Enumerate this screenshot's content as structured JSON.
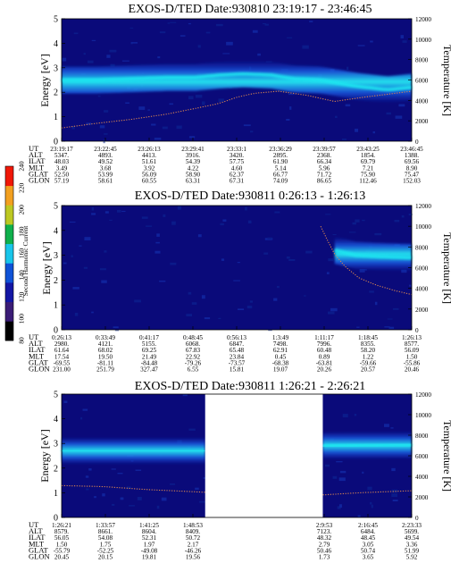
{
  "colors": {
    "background": "#0a0a7a",
    "band_core": "#1de7f0",
    "temperature_trace": "#d88450",
    "data_gap": "#ffffff"
  },
  "colorbar": {
    "label": "Second Harmonic Current",
    "ticks": [
      "80",
      "100",
      "120",
      "140",
      "160",
      "180",
      "200",
      "220",
      "240"
    ],
    "colors": [
      "#000000",
      "#3a1c76",
      "#1316a4",
      "#0f52d7",
      "#18c5ea",
      "#0fb04c",
      "#bdc822",
      "#f2a020",
      "#f01808"
    ]
  },
  "chart_data": [
    {
      "type": "heatmap",
      "title": "EXOS-D/TED  Date:930810  23:19:17 - 23:46:45",
      "ylabel": "Energy [eV]",
      "ylabel_right": "Temperature [K]",
      "ylim": [
        0,
        5
      ],
      "ylim_right": [
        0,
        12000
      ],
      "yticks": [
        0,
        1,
        2,
        3,
        4,
        5
      ],
      "yticks_right": [
        0,
        2000,
        4000,
        6000,
        8000,
        10000,
        12000
      ],
      "row_labels": [
        "UT",
        "ALT",
        "ILAT",
        "MLT",
        "GLAT",
        "GLON"
      ],
      "columns": [
        [
          "23:19:17",
          "5347.",
          "48.03",
          "3.49",
          "52.50",
          "57.19"
        ],
        [
          "23:22:45",
          "4893.",
          "49.52",
          "3.68",
          "53.99",
          "58.61"
        ],
        [
          "23:26:13",
          "4413.",
          "51.61",
          "3.92",
          "56.09",
          "60.55"
        ],
        [
          "23:29:41",
          "3916.",
          "54.39",
          "4.22",
          "58.90",
          "63.31"
        ],
        [
          "23:33:1",
          "3420.",
          "57.75",
          "4.60",
          "62.37",
          "67.31"
        ],
        [
          "23:36:29",
          "2895.",
          "61.90",
          "5.14",
          "66.77",
          "74.09"
        ],
        [
          "23:39:57",
          "2368.",
          "66.34",
          "5.96",
          "71.72",
          "86.65"
        ],
        [
          "23:43:25",
          "1854.",
          "69.79",
          "7.21",
          "75.90",
          "112.46"
        ],
        [
          "23:46:45",
          "1388.",
          "69.56",
          "8.90",
          "75.47",
          "152.03"
        ]
      ],
      "band_energy_ev": [
        [
          0.0,
          2.5
        ],
        [
          0.1,
          2.5
        ],
        [
          0.2,
          2.55
        ],
        [
          0.3,
          2.6
        ],
        [
          0.38,
          2.6
        ],
        [
          0.45,
          2.7
        ],
        [
          0.52,
          2.75
        ],
        [
          0.6,
          2.7
        ],
        [
          0.66,
          2.55
        ],
        [
          0.74,
          2.5
        ],
        [
          0.84,
          2.25
        ],
        [
          0.93,
          2.1
        ],
        [
          1.0,
          2.2
        ]
      ],
      "temperature_k": [
        [
          0.0,
          1300
        ],
        [
          0.1,
          1750
        ],
        [
          0.2,
          2150
        ],
        [
          0.3,
          2650
        ],
        [
          0.38,
          3200
        ],
        [
          0.45,
          3700
        ],
        [
          0.5,
          4300
        ],
        [
          0.55,
          4700
        ],
        [
          0.62,
          4900
        ],
        [
          0.7,
          4500
        ],
        [
          0.78,
          3900
        ],
        [
          0.86,
          4300
        ],
        [
          0.93,
          4600
        ],
        [
          1.0,
          4900
        ]
      ]
    },
    {
      "type": "heatmap",
      "title": "EXOS-D/TED   Date:930811  0:26:13 - 1:26:13",
      "ylabel": "Energy [eV]",
      "ylabel_right": "Temperature [K]",
      "ylim": [
        0,
        5
      ],
      "ylim_right": [
        0,
        12000
      ],
      "yticks": [
        0,
        1,
        2,
        3,
        4,
        5
      ],
      "yticks_right": [
        0,
        2000,
        4000,
        6000,
        8000,
        10000,
        12000
      ],
      "row_labels": [
        "UT",
        "ALT",
        "ILAT",
        "MLT",
        "GLAT",
        "GLON"
      ],
      "columns": [
        [
          "0:26:13",
          "2980.",
          "61.64",
          "17.54",
          "-69.55",
          "231.00"
        ],
        [
          "0:33:49",
          "4121.",
          "68.02",
          "19.50",
          "-81.11",
          "251.79"
        ],
        [
          "0:41:17",
          "5155.",
          "69.25",
          "21.49",
          "-84.48",
          "327.47"
        ],
        [
          "0:48:45",
          "6068.",
          "67.83",
          "22.92",
          "-79.26",
          "6.55"
        ],
        [
          "0:56:13",
          "6847.",
          "65.48",
          "23.84",
          "-73.57",
          "15.81"
        ],
        [
          "1:3:49",
          "7498.",
          "62.91",
          "0.45",
          "-68.38",
          "19.07"
        ],
        [
          "1:11:17",
          "7996.",
          "60.48",
          "0.89",
          "-63.81",
          "20.26"
        ],
        [
          "1:18:45",
          "8355.",
          "58.20",
          "1.22",
          "-59.66",
          "20.57"
        ],
        [
          "1:26:13",
          "8577.",
          "56.09",
          "1.50",
          "-55.86",
          "20.46"
        ]
      ],
      "band_energy_ev": [
        [
          0.78,
          3.2
        ],
        [
          0.84,
          3.0
        ],
        [
          0.9,
          2.95
        ],
        [
          1.0,
          2.9
        ]
      ],
      "temperature_k": [
        [
          0.74,
          10000
        ],
        [
          0.76,
          8600
        ],
        [
          0.78,
          7300
        ],
        [
          0.81,
          6100
        ],
        [
          0.85,
          5000
        ],
        [
          0.9,
          4300
        ],
        [
          0.95,
          3800
        ],
        [
          1.0,
          3400
        ]
      ]
    },
    {
      "type": "heatmap",
      "title": "EXOS-D/TED   Date:930811  1:26:21 - 2:26:21",
      "ylabel": "Energy [eV]",
      "ylabel_right": "Temperature [K]",
      "ylim": [
        0,
        5
      ],
      "ylim_right": [
        0,
        12000
      ],
      "yticks": [
        0,
        1,
        2,
        3,
        4,
        5
      ],
      "yticks_right": [
        0,
        2000,
        4000,
        6000,
        8000,
        10000,
        12000
      ],
      "row_labels": [
        "UT",
        "ALT",
        "ILAT",
        "MLT",
        "GLAT",
        "GLON"
      ],
      "columns": [
        [
          "1:26:21",
          "8579.",
          "56.05",
          "1.50",
          "-55.79",
          "20.45"
        ],
        [
          "1:33:57",
          "8661.",
          "54.08",
          "1.75",
          "-52.25",
          "20.15"
        ],
        [
          "1:41:25",
          "8604.",
          "52.31",
          "1.97",
          "-49.08",
          "19.81"
        ],
        [
          "1:48:53",
          "8409.",
          "50.72",
          "2.17",
          "-46.26",
          "19.56"
        ],
        [
          "",
          "",
          "",
          "",
          "",
          ""
        ],
        [
          "",
          "",
          "",
          "",
          "",
          ""
        ],
        [
          "2:9:53",
          "7123.",
          "48.32",
          "2.79",
          "50.46",
          "1.73"
        ],
        [
          "2:16:45",
          "6484.",
          "48.45",
          "3.05",
          "50.74",
          "3.65"
        ],
        [
          "2:23:33",
          "5699.",
          "49.54",
          "3.36",
          "51.99",
          "5.92"
        ]
      ],
      "data_gap_fraction": [
        0.41,
        0.746
      ],
      "band_energy_ev": [
        [
          0.0,
          2.7
        ],
        [
          0.4,
          2.7
        ],
        [
          0.76,
          2.9
        ],
        [
          1.0,
          2.95
        ]
      ],
      "temperature_k": [
        [
          0.0,
          3100
        ],
        [
          0.12,
          3000
        ],
        [
          0.25,
          2700
        ],
        [
          0.38,
          2500
        ],
        [
          0.41,
          2450
        ],
        [
          0.75,
          2200
        ],
        [
          0.85,
          2400
        ],
        [
          1.0,
          2600
        ]
      ]
    }
  ]
}
